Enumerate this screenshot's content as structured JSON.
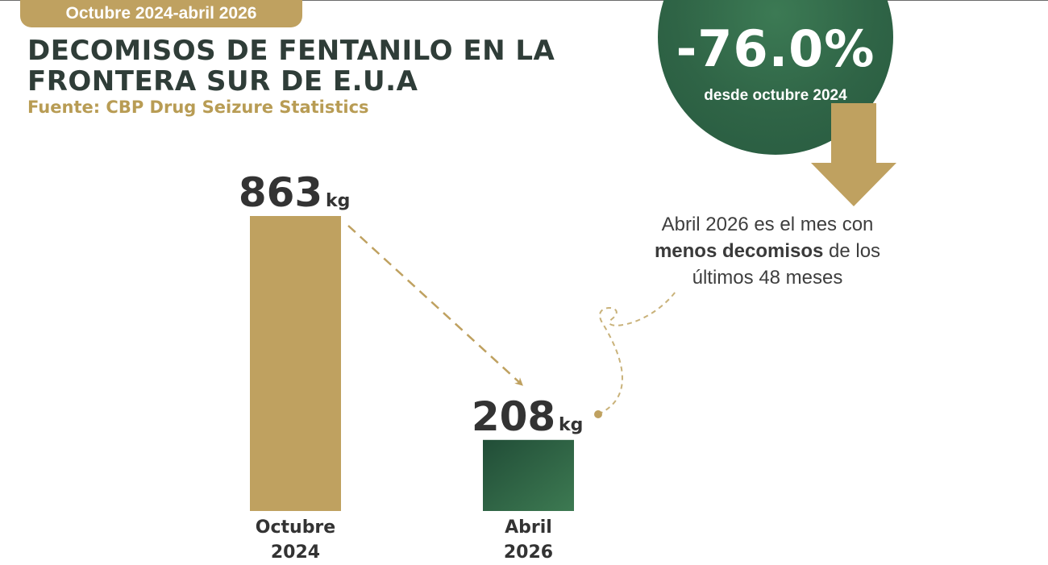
{
  "period_tab": "Octubre 2024-abril 2026",
  "title_lines": [
    "DECOMISOS DE FENTANILO EN LA",
    "FRONTERA SUR DE E.U.A"
  ],
  "source": "Fuente:  CBP Drug Seizure Statistics",
  "highlight": {
    "percent": "-76.0%",
    "subtitle": "desde octubre 2024"
  },
  "note": {
    "pre": "Abril 2026 es el mes con ",
    "bold": "menos decomisos",
    "mid": " de los últimos ",
    "number": "48",
    "post": " meses"
  },
  "colors": {
    "gold": "#bfa160",
    "green_dark": "#214d37",
    "green_light": "#3d7a52",
    "title": "#2f3d38"
  },
  "chart_data": {
    "type": "bar",
    "categories": [
      [
        "Octubre",
        "2024"
      ],
      [
        "Abril",
        "2026"
      ]
    ],
    "values": [
      863,
      208
    ],
    "unit": "kg",
    "value_labels": [
      "863",
      "208"
    ],
    "bar_colors": [
      "#bfa160",
      "green-gradient"
    ],
    "ylim": [
      0,
      863
    ],
    "grid": false,
    "legend": "none"
  }
}
